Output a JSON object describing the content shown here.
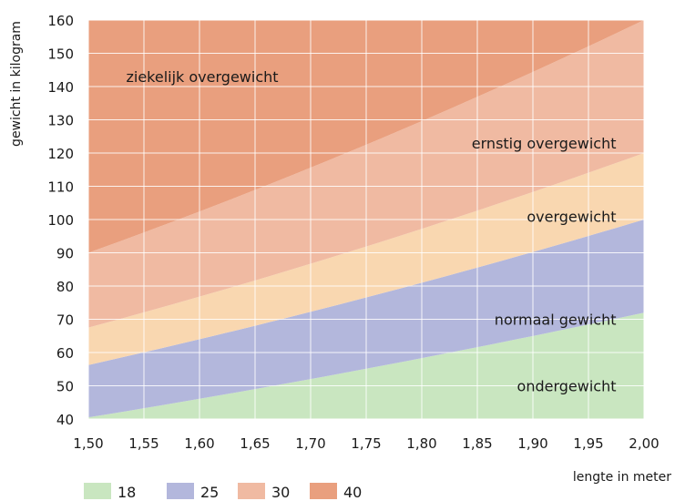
{
  "chart_data": {
    "type": "area",
    "xlabel": "lengte in meter",
    "ylabel": "gewicht in kilogram",
    "x_ticks": [
      "1,50",
      "1,55",
      "1,60",
      "1,65",
      "1,70",
      "1,75",
      "1,80",
      "1,85",
      "1,90",
      "1,95",
      "2,00"
    ],
    "y_ticks": [
      "40",
      "50",
      "60",
      "70",
      "80",
      "90",
      "100",
      "110",
      "120",
      "130",
      "140",
      "150",
      "160"
    ],
    "xlim": [
      1.5,
      2.0
    ],
    "ylim": [
      40,
      160
    ],
    "grid": true,
    "bmi_boundaries": [
      18,
      25,
      30,
      40
    ],
    "zones": [
      {
        "label": "ondergewicht",
        "bmi_min": 0,
        "bmi_max": 18,
        "color": "#c9e6c0"
      },
      {
        "label": "normaal gewicht",
        "bmi_min": 18,
        "bmi_max": 25,
        "color": "#b3b7dc"
      },
      {
        "label": "overgewicht",
        "bmi_min": 25,
        "bmi_max": 30,
        "color": "#f9d7b0"
      },
      {
        "label": "ernstig overgewicht",
        "bmi_min": 30,
        "bmi_max": 40,
        "color": "#f0baa2"
      },
      {
        "label": "ziekelijk overgewicht",
        "bmi_min": 40,
        "bmi_max": 999,
        "color": "#e99f7e"
      }
    ],
    "legend": [
      {
        "label": "18",
        "color": "#c9e6c0"
      },
      {
        "label": "25",
        "color": "#b3b7dc"
      },
      {
        "label": "30",
        "color": "#f0baa2"
      },
      {
        "label": "40",
        "color": "#e99f7e"
      }
    ]
  }
}
